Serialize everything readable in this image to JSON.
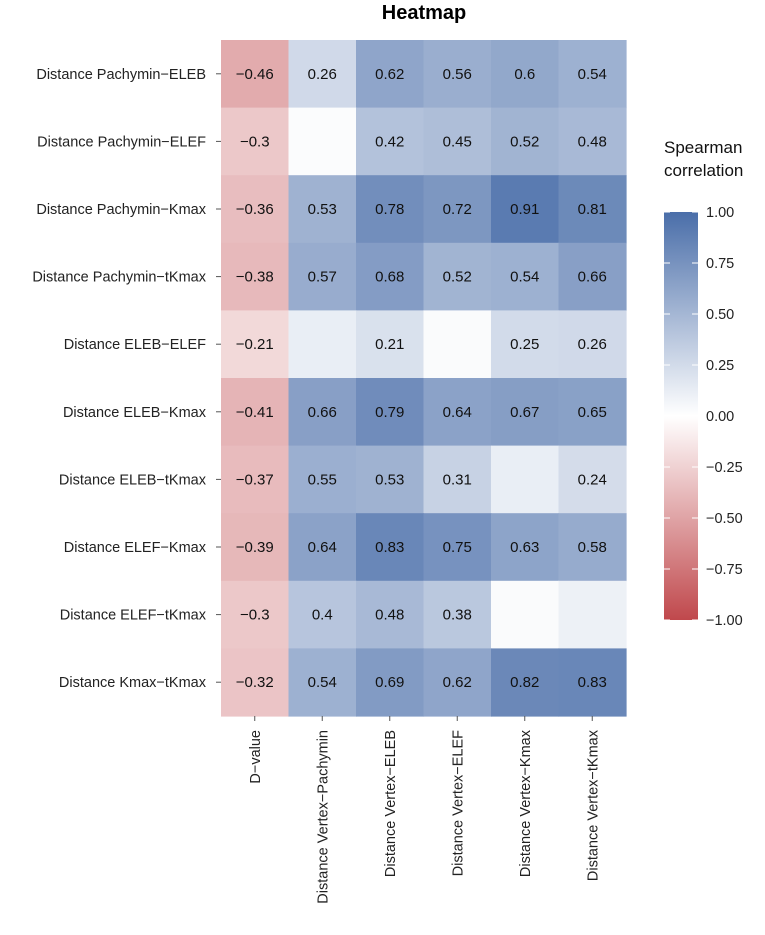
{
  "chart_data": {
    "type": "heatmap",
    "title": "Heatmap",
    "rows": [
      "Distance Pachymin−ELEB",
      "Distance Pachymin−ELEF",
      "Distance Pachymin−Kmax",
      "Distance Pachymin−tKmax",
      "Distance ELEB−ELEF",
      "Distance ELEB−Kmax",
      "Distance ELEB−tKmax",
      "Distance ELEF−Kmax",
      "Distance ELEF−tKmax",
      "Distance Kmax−tKmax"
    ],
    "columns": [
      "D−value",
      "Distance Vertex−Pachymin",
      "Distance Vertex−ELEB",
      "Distance Vertex−ELEF",
      "Distance Vertex−Kmax",
      "Distance Vertex−tKmax"
    ],
    "values": [
      [
        -0.46,
        0.26,
        0.62,
        0.56,
        0.6,
        0.54
      ],
      [
        -0.3,
        0.02,
        0.42,
        0.45,
        0.52,
        0.48
      ],
      [
        -0.36,
        0.53,
        0.78,
        0.72,
        0.91,
        0.81
      ],
      [
        -0.38,
        0.57,
        0.68,
        0.52,
        0.54,
        0.66
      ],
      [
        -0.21,
        0.12,
        0.21,
        0.03,
        0.25,
        0.26
      ],
      [
        -0.41,
        0.66,
        0.79,
        0.64,
        0.67,
        0.65
      ],
      [
        -0.37,
        0.55,
        0.53,
        0.31,
        0.12,
        0.24
      ],
      [
        -0.39,
        0.64,
        0.83,
        0.75,
        0.63,
        0.58
      ],
      [
        -0.3,
        0.4,
        0.48,
        0.38,
        0.03,
        0.1
      ],
      [
        -0.32,
        0.54,
        0.69,
        0.62,
        0.82,
        0.83
      ]
    ],
    "labels": [
      [
        "−0.46",
        "0.26",
        "0.62",
        "0.56",
        "0.6",
        "0.54"
      ],
      [
        "−0.3",
        "",
        "0.42",
        "0.45",
        "0.52",
        "0.48"
      ],
      [
        "−0.36",
        "0.53",
        "0.78",
        "0.72",
        "0.91",
        "0.81"
      ],
      [
        "−0.38",
        "0.57",
        "0.68",
        "0.52",
        "0.54",
        "0.66"
      ],
      [
        "−0.21",
        "",
        "0.21",
        "",
        "0.25",
        "0.26"
      ],
      [
        "−0.41",
        "0.66",
        "0.79",
        "0.64",
        "0.67",
        "0.65"
      ],
      [
        "−0.37",
        "0.55",
        "0.53",
        "0.31",
        "",
        "0.24"
      ],
      [
        "−0.39",
        "0.64",
        "0.83",
        "0.75",
        "0.63",
        "0.58"
      ],
      [
        "−0.3",
        "0.4",
        "0.48",
        "0.38",
        "",
        ""
      ],
      [
        "−0.32",
        "0.54",
        "0.69",
        "0.62",
        "0.82",
        "0.83"
      ]
    ],
    "legend": {
      "title": [
        "Spearman",
        "correlation"
      ],
      "range": [
        -1,
        1
      ],
      "ticks": [
        1,
        0.75,
        0.5,
        0.25,
        0,
        -0.25,
        -0.5,
        -0.75,
        -1
      ],
      "tick_labels": [
        "1.00",
        "0.75",
        "0.50",
        "0.25",
        "0.00",
        "−0.25",
        "−0.50",
        "−0.75",
        "−1.00"
      ],
      "placement": "right"
    },
    "colors": {
      "low": "#c0484c",
      "mid": "#ffffff",
      "high": "#4a6ea9"
    }
  }
}
